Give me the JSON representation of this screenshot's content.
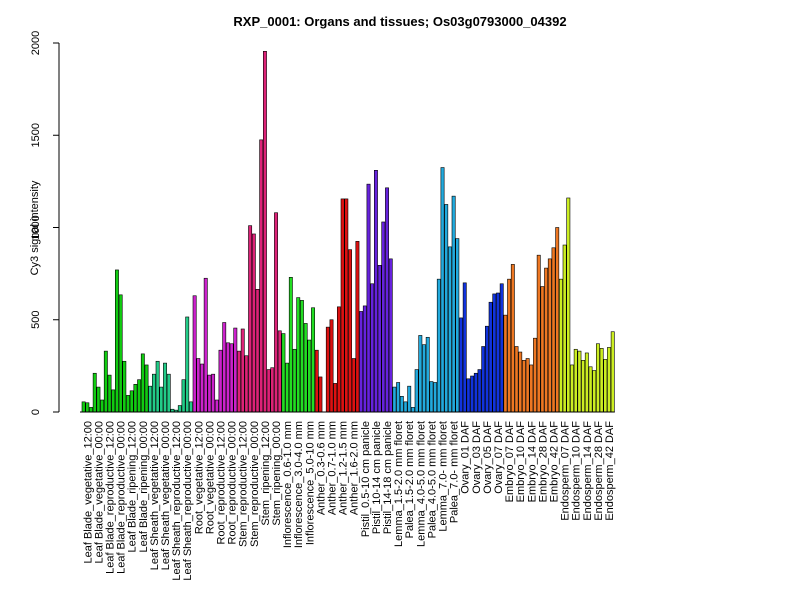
{
  "chart_data": {
    "type": "bar",
    "title": "RXP_0001: Organs and tissues; Os03g0793000_04392",
    "xlabel": "",
    "ylabel": "Cy3 signal intensity",
    "ylim": [
      0,
      2000
    ],
    "yticks": [
      0,
      500,
      1000,
      1500,
      2000
    ],
    "grid": false,
    "groups": [
      {
        "label": "Leaf Blade_vegetative_12:00",
        "color": "#11cc11",
        "values": [
          55,
          50,
          25
        ]
      },
      {
        "label": "Leaf Blade_vegetative_00:00",
        "color": "#11cc11",
        "values": [
          210,
          135,
          65
        ]
      },
      {
        "label": "Leaf Blade_reproductive_12:00",
        "color": "#11cc11",
        "values": [
          330,
          200,
          120
        ]
      },
      {
        "label": "Leaf Blade_reproductive_00:00",
        "color": "#11cc11",
        "values": [
          770,
          635,
          275
        ]
      },
      {
        "label": "Leaf Blade_ripening_12:00",
        "color": "#11cc11",
        "values": [
          90,
          115,
          150
        ]
      },
      {
        "label": "Leaf Blade_ripening_00:00",
        "color": "#11cc11",
        "values": [
          175,
          315,
          255
        ]
      },
      {
        "label": "Leaf Sheath_vegetative_12:00",
        "color": "#22cc88",
        "values": [
          140,
          205,
          275
        ]
      },
      {
        "label": "Leaf Sheath_vegetative_00:00",
        "color": "#22cc88",
        "values": [
          135,
          265,
          205
        ]
      },
      {
        "label": "Leaf Sheath_reproductive_12:00",
        "color": "#22cc88",
        "values": [
          15,
          10,
          35
        ]
      },
      {
        "label": "Leaf Sheath_reproductive_00:00",
        "color": "#22cc88",
        "values": [
          175,
          515,
          55
        ]
      },
      {
        "label": "Root_vegetative_12:00",
        "color": "#cc22cc",
        "values": [
          630,
          290,
          260
        ]
      },
      {
        "label": "Root_vegetative_00:00",
        "color": "#cc22cc",
        "values": [
          725,
          200,
          205
        ]
      },
      {
        "label": "Root_reproductive_12:00",
        "color": "#cc22cc",
        "values": [
          65,
          335,
          485
        ]
      },
      {
        "label": "Root_reproductive_00:00",
        "color": "#cc22cc",
        "values": [
          375,
          370,
          455
        ]
      },
      {
        "label": "Stem_reproductive_12:00",
        "color": "#dd2277",
        "values": [
          330,
          450,
          305
        ]
      },
      {
        "label": "Stem_reproductive_00:00",
        "color": "#dd2277",
        "values": [
          1010,
          965,
          665
        ]
      },
      {
        "label": "Stem_ripening_12:00",
        "color": "#dd2277",
        "values": [
          1475,
          1955,
          230
        ]
      },
      {
        "label": "Stem_ripening_00:00",
        "color": "#dd2277",
        "values": [
          240,
          1080,
          440
        ]
      },
      {
        "label": "Inflorescence_0.6-1.0 mm",
        "color": "#22dd22",
        "values": [
          425,
          265,
          730
        ]
      },
      {
        "label": "Inflorescence_3.0-4.0 mm",
        "color": "#22dd22",
        "values": [
          340,
          620,
          605
        ]
      },
      {
        "label": "Inflorescence_5.0-10 mm",
        "color": "#22dd22",
        "values": [
          480,
          390,
          565
        ]
      },
      {
        "label": "Anther_0.3-0.6 mm",
        "color": "#dd1111",
        "values": [
          335,
          190,
          0
        ]
      },
      {
        "label": "Anther_0.7-1.0 mm",
        "color": "#dd1111",
        "values": [
          460,
          500,
          155
        ]
      },
      {
        "label": "Anther_1.2-1.5 mm",
        "color": "#dd1111",
        "values": [
          570,
          1155,
          1155
        ]
      },
      {
        "label": "Anther_1.6-2.0 mm",
        "color": "#dd1111",
        "values": [
          880,
          290,
          925
        ]
      },
      {
        "label": "Pistil_0.5-10 cm panicle",
        "color": "#6622dd",
        "values": [
          545,
          575,
          1235
        ]
      },
      {
        "label": "Pistil_10-14 cm panicle",
        "color": "#6622dd",
        "values": [
          695,
          1310,
          795
        ]
      },
      {
        "label": "Pistil_14-18 cm panicle",
        "color": "#6622dd",
        "values": [
          1030,
          1215,
          830
        ]
      },
      {
        "label": "Lemma_1.5-2.0 mm floret",
        "color": "#22aadd",
        "values": [
          135,
          160,
          85
        ]
      },
      {
        "label": "Palea_1.5-2.0 mm floret",
        "color": "#22aadd",
        "values": [
          55,
          140,
          25
        ]
      },
      {
        "label": "Lemma_4.0-5.0 mm floret",
        "color": "#22aadd",
        "values": [
          230,
          415,
          365
        ]
      },
      {
        "label": "Palea_4.0-5.0 mm floret",
        "color": "#22aadd",
        "values": [
          405,
          165,
          160
        ]
      },
      {
        "label": "Lemma_7.0- mm floret",
        "color": "#22aadd",
        "values": [
          720,
          1325,
          1125
        ]
      },
      {
        "label": "Palea_7.0- mm floret",
        "color": "#22aadd",
        "values": [
          895,
          1170,
          940
        ]
      },
      {
        "label": "Ovary_01 DAF",
        "color": "#1133dd",
        "values": [
          510,
          700,
          180
        ]
      },
      {
        "label": "Ovary_03 DAF",
        "color": "#1133dd",
        "values": [
          195,
          210,
          230
        ]
      },
      {
        "label": "Ovary_05 DAF",
        "color": "#1133dd",
        "values": [
          355,
          465,
          595
        ]
      },
      {
        "label": "Ovary_07 DAF",
        "color": "#1133dd",
        "values": [
          640,
          645,
          695
        ]
      },
      {
        "label": "Embryo_07 DAF",
        "color": "#ee7722",
        "values": [
          525,
          720,
          800
        ]
      },
      {
        "label": "Embryo_10 DAF",
        "color": "#ee7722",
        "values": [
          355,
          325,
          280
        ]
      },
      {
        "label": "Embryo_14 DAF",
        "color": "#ee7722",
        "values": [
          290,
          255,
          400
        ]
      },
      {
        "label": "Embryo_28 DAF",
        "color": "#ee7722",
        "values": [
          850,
          680,
          780
        ]
      },
      {
        "label": "Embryo_42 DAF",
        "color": "#ee7722",
        "values": [
          830,
          890,
          1000
        ]
      },
      {
        "label": "Endosperm_07 DAF",
        "color": "#ccee22",
        "values": [
          720,
          905,
          1160
        ]
      },
      {
        "label": "Endosperm_10 DAF",
        "color": "#ccee22",
        "values": [
          255,
          340,
          330
        ]
      },
      {
        "label": "Endosperm_14 DAF",
        "color": "#ccee22",
        "values": [
          280,
          320,
          245
        ]
      },
      {
        "label": "Endosperm_28 DAF",
        "color": "#ccee22",
        "values": [
          225,
          370,
          345
        ]
      },
      {
        "label": "Endosperm_42 DAF",
        "color": "#ccee22",
        "values": [
          285,
          350,
          435
        ]
      }
    ],
    "visible_tick_labels": [
      "Leaf Blade_vegetative_12:00",
      "Leaf Blade_vegetative_00:00",
      "Leaf Blade_reproductive_12:00",
      "Leaf Blade_reproductive_00:00",
      "Leaf Blade_ripening_12:00",
      "Leaf Blade_ripening_00:00",
      "Leaf Sheath_vegetative_12:00",
      "Leaf Sheath_vegetative_00:00",
      "Leaf Sheath_reproductive_12:00",
      "Leaf Sheath_reproductive_00:00",
      "Root_vegetative_12:00",
      "Root_vegetative_00:00",
      "Root_reproductive_12:00",
      "Root_reproductive_00:00",
      "Stem_reproductive_12:00",
      "Stem_reproductive_00:00",
      "Stem_ripening_12:00",
      "Stem_ripening_00:00",
      "Inflorescence_0.6-1.0 mm",
      "Inflorescence_3.0-4.0 mm",
      "Inflorescence_5.0-10 mm",
      "Anther_0.3-0.6 mm",
      "Anther_0.7-1.0 mm",
      "Anther_1.2-1.5 mm",
      "Anther_1.6-2.0 mm",
      "Pistil_0.5-10 cm panicle",
      "Pistil_10-14 cm panicle",
      "Pistil_14-18 cm panicle",
      "Lemma_1.5-2.0 mm floret",
      "Palea_1.5-2.0 mm floret",
      "Lemma_4.0-5.0 mm floret",
      "Palea_4.0-5.0 mm floret",
      "Lemma_7.0- mm floret",
      "Palea_7.0- mm floret",
      "Ovary_01 DAF",
      "Ovary_03 DAF",
      "Ovary_05 DAF",
      "Ovary_07 DAF",
      "Embryo_07 DAF",
      "Embryo_10 DAF",
      "Embryo_14 DAF",
      "Embryo_28 DAF",
      "Embryo_42 DAF",
      "Endosperm_07 DAF",
      "Endosperm_10 DAF",
      "Endosperm_14 DAF",
      "Endosperm_28 DAF",
      "Endosperm_42 DAF"
    ]
  }
}
